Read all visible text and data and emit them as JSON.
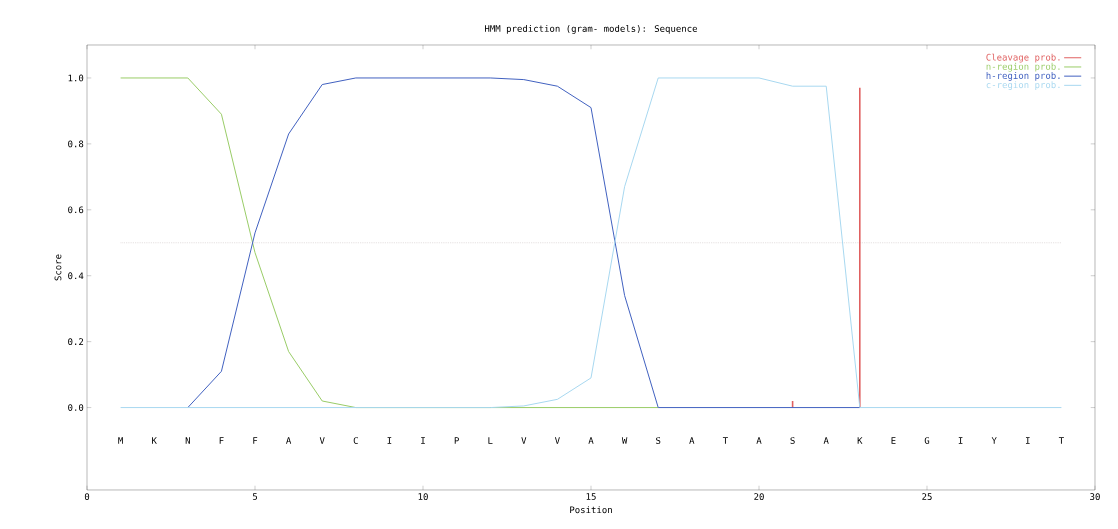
{
  "chart_data": {
    "type": "line",
    "title": "HMM prediction (gram- models): Sequence",
    "xlabel": "Position",
    "ylabel": "Score",
    "x": [
      1,
      2,
      3,
      4,
      5,
      6,
      7,
      8,
      9,
      10,
      11,
      12,
      13,
      14,
      15,
      16,
      17,
      18,
      19,
      20,
      21,
      22,
      23,
      24,
      25,
      26,
      27,
      28,
      29
    ],
    "series": [
      {
        "name": "Cleavage prob.",
        "type": "bar",
        "color": "#e06060",
        "x": [
          21,
          23
        ],
        "values": [
          0.02,
          0.97
        ]
      },
      {
        "name": "n-region prob.",
        "color": "#99cc66",
        "values": [
          1,
          1,
          1,
          0.89,
          0.47,
          0.17,
          0.02,
          0,
          null,
          null,
          null,
          null,
          0,
          0,
          0,
          0,
          0,
          null,
          null,
          null,
          null,
          null,
          null,
          null,
          null,
          null,
          null,
          null,
          null
        ]
      },
      {
        "name": "h-region prob.",
        "color": "#4060c0",
        "values": [
          null,
          null,
          0,
          0.11,
          0.53,
          0.83,
          0.98,
          1,
          1,
          1,
          1,
          1,
          0.995,
          0.975,
          0.91,
          0.34,
          0,
          0,
          0,
          0,
          0,
          0,
          0,
          null,
          null,
          null,
          null,
          null,
          null
        ]
      },
      {
        "name": "c-region prob.",
        "color": "#a8d8f0",
        "values": [
          0,
          0,
          0,
          0,
          0,
          0,
          0,
          0,
          0,
          0,
          0,
          0,
          0.005,
          0.025,
          0.09,
          0.67,
          1,
          1,
          1,
          1,
          0.975,
          0.975,
          0,
          0,
          0,
          0,
          0,
          0,
          0
        ]
      }
    ],
    "xlim": [
      0,
      30
    ],
    "ylim": [
      -0.25,
      1.1
    ],
    "xticks": [
      0,
      5,
      10,
      15,
      20,
      25,
      30
    ],
    "yticks": [
      {
        "value": 0,
        "label": "0.0"
      },
      0.2,
      0.4,
      0.6,
      0.8,
      {
        "value": 1,
        "label": "1.0"
      }
    ],
    "ref_lines": [
      {
        "axis": "y",
        "value": 0.5,
        "color": "#d8d0d0",
        "line_style": "dotted"
      }
    ],
    "legend": "top right",
    "annotations": [
      "M",
      "K",
      "N",
      "F",
      "F",
      "A",
      "V",
      "C",
      "I",
      "I",
      "P",
      "L",
      "V",
      "V",
      "A",
      "W",
      "S",
      "A",
      "T",
      "A",
      "S",
      "A",
      "K",
      "E",
      "G",
      "I",
      "Y",
      "I",
      "T"
    ]
  }
}
